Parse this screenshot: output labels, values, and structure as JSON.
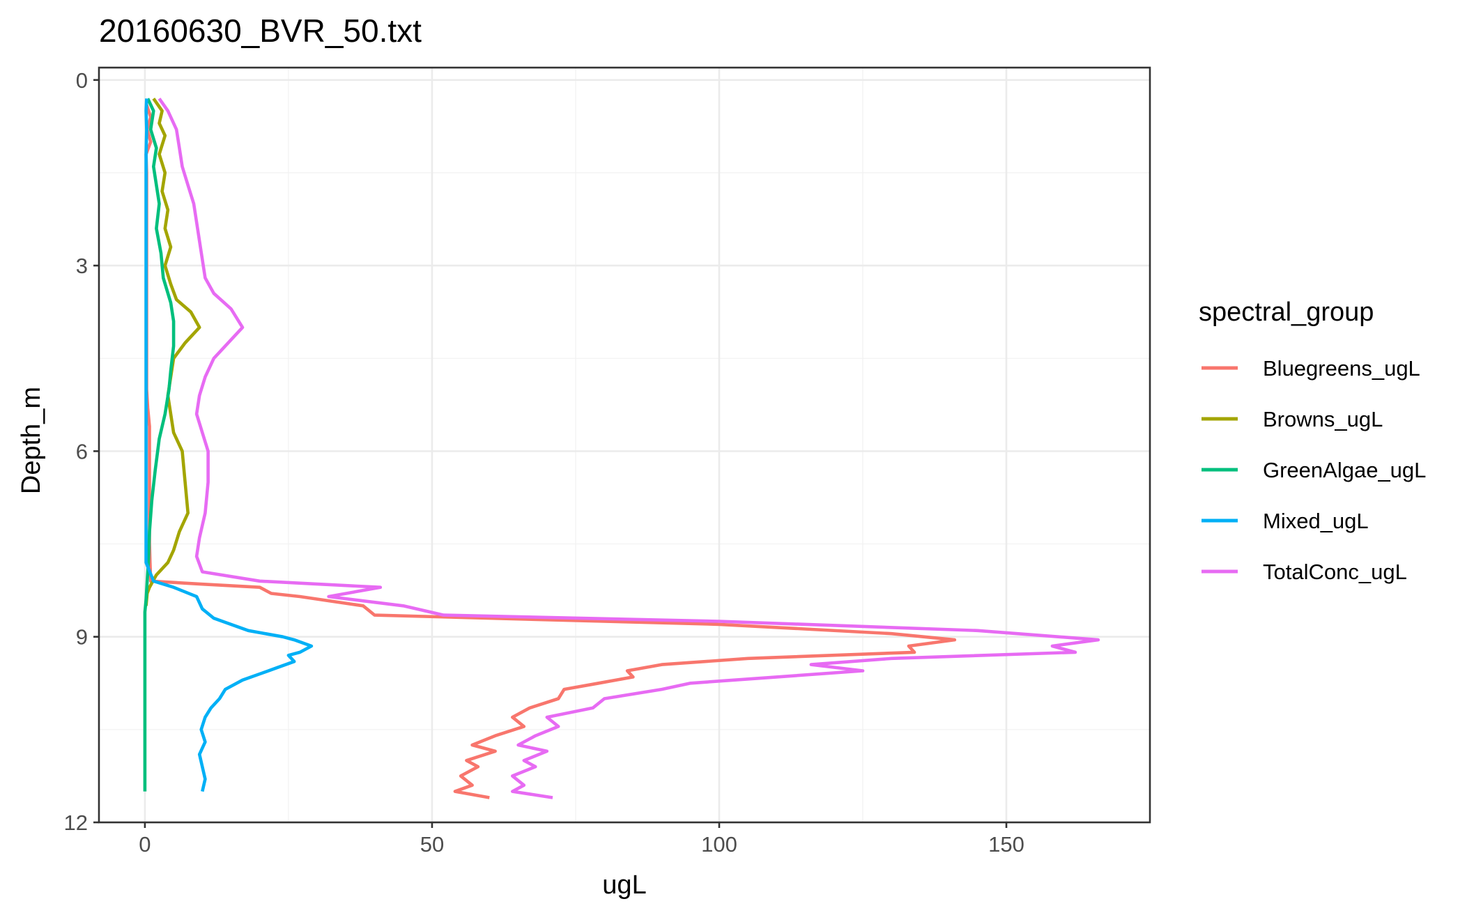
{
  "chart_data": {
    "type": "line",
    "title": "20160630_BVR_50.txt",
    "xlabel": "ugL",
    "ylabel": "Depth_m",
    "xlim": [
      -8,
      175
    ],
    "ylim": [
      12,
      -0.2
    ],
    "y_reversed": true,
    "x_ticks": [
      0,
      50,
      100,
      150
    ],
    "y_ticks": [
      0,
      3,
      6,
      9,
      12
    ],
    "grid": true,
    "legend": {
      "title": "spectral_group",
      "position": "right"
    },
    "series": [
      {
        "name": "Bluegreens_ugL",
        "color": "#F8766D",
        "points": [
          [
            0.3,
            0.4
          ],
          [
            1.0,
            0.6
          ],
          [
            0.4,
            0.8
          ],
          [
            1.0,
            1.0
          ],
          [
            0.2,
            1.2
          ],
          [
            0.3,
            1.5
          ],
          [
            0.3,
            2.0
          ],
          [
            0.3,
            2.5
          ],
          [
            0.3,
            3.0
          ],
          [
            0.3,
            3.5
          ],
          [
            0.3,
            4.0
          ],
          [
            0.3,
            4.5
          ],
          [
            0.3,
            5.0
          ],
          [
            0.5,
            5.3
          ],
          [
            0.8,
            5.6
          ],
          [
            0.8,
            6.0
          ],
          [
            0.8,
            6.5
          ],
          [
            0.8,
            7.0
          ],
          [
            0.8,
            7.5
          ],
          [
            0.9,
            7.8
          ],
          [
            1.0,
            8.1
          ],
          [
            10,
            8.15
          ],
          [
            20,
            8.2
          ],
          [
            22,
            8.3
          ],
          [
            27,
            8.35
          ],
          [
            38,
            8.5
          ],
          [
            40,
            8.65
          ],
          [
            100,
            8.8
          ],
          [
            130,
            8.95
          ],
          [
            141,
            9.05
          ],
          [
            133,
            9.15
          ],
          [
            134,
            9.25
          ],
          [
            105,
            9.35
          ],
          [
            90,
            9.45
          ],
          [
            84,
            9.55
          ],
          [
            85,
            9.65
          ],
          [
            79,
            9.75
          ],
          [
            73,
            9.85
          ],
          [
            72,
            10.0
          ],
          [
            67,
            10.15
          ],
          [
            64,
            10.3
          ],
          [
            66,
            10.45
          ],
          [
            61,
            10.6
          ],
          [
            57,
            10.75
          ],
          [
            61,
            10.85
          ],
          [
            56,
            11.0
          ],
          [
            58,
            11.1
          ],
          [
            55,
            11.25
          ],
          [
            57,
            11.4
          ],
          [
            54,
            11.5
          ],
          [
            60,
            11.6
          ]
        ]
      },
      {
        "name": "Browns_ugL",
        "color": "#A3A500",
        "points": [
          [
            1.5,
            0.3
          ],
          [
            3.0,
            0.5
          ],
          [
            2.5,
            0.7
          ],
          [
            3.5,
            0.9
          ],
          [
            2.5,
            1.2
          ],
          [
            3.5,
            1.5
          ],
          [
            3.0,
            1.8
          ],
          [
            4.0,
            2.1
          ],
          [
            3.5,
            2.4
          ],
          [
            4.5,
            2.7
          ],
          [
            3.5,
            3.0
          ],
          [
            4.5,
            3.3
          ],
          [
            5.5,
            3.55
          ],
          [
            8.0,
            3.75
          ],
          [
            9.5,
            4.0
          ],
          [
            7.0,
            4.25
          ],
          [
            5.0,
            4.5
          ],
          [
            4.5,
            4.8
          ],
          [
            4.0,
            5.1
          ],
          [
            4.5,
            5.4
          ],
          [
            5.0,
            5.7
          ],
          [
            6.5,
            6.0
          ],
          [
            7.0,
            6.5
          ],
          [
            7.5,
            7.0
          ],
          [
            6.0,
            7.3
          ],
          [
            5.0,
            7.6
          ],
          [
            4.0,
            7.8
          ],
          [
            2.0,
            8.0
          ],
          [
            0.8,
            8.2
          ],
          [
            0.4,
            8.3
          ],
          [
            0.2,
            8.5
          ]
        ]
      },
      {
        "name": "GreenAlgae_ugL",
        "color": "#00BF7D",
        "points": [
          [
            0.5,
            0.3
          ],
          [
            1.5,
            0.5
          ],
          [
            1.0,
            0.8
          ],
          [
            2.0,
            1.1
          ],
          [
            1.5,
            1.4
          ],
          [
            2.0,
            1.7
          ],
          [
            2.5,
            2.0
          ],
          [
            2.0,
            2.4
          ],
          [
            2.8,
            2.8
          ],
          [
            3.2,
            3.2
          ],
          [
            4.5,
            3.6
          ],
          [
            5.0,
            3.9
          ],
          [
            5.0,
            4.3
          ],
          [
            4.5,
            4.7
          ],
          [
            4.2,
            5.0
          ],
          [
            3.5,
            5.4
          ],
          [
            2.5,
            5.8
          ],
          [
            1.8,
            6.3
          ],
          [
            1.2,
            6.8
          ],
          [
            0.8,
            7.3
          ],
          [
            0.6,
            7.8
          ],
          [
            0.4,
            8.1
          ],
          [
            0.2,
            8.4
          ],
          [
            0,
            8.6
          ],
          [
            0,
            9
          ],
          [
            0,
            9.5
          ],
          [
            0,
            10
          ],
          [
            0,
            10.5
          ],
          [
            0,
            11
          ],
          [
            0,
            11.5
          ]
        ]
      },
      {
        "name": "Mixed_ugL",
        "color": "#00B0F6",
        "points": [
          [
            0.3,
            0.3
          ],
          [
            0.2,
            0.5
          ],
          [
            0.3,
            0.8
          ],
          [
            0.2,
            1.2
          ],
          [
            0.2,
            1.6
          ],
          [
            0.2,
            2.0
          ],
          [
            0.2,
            3.0
          ],
          [
            0.2,
            4.0
          ],
          [
            0.2,
            5.0
          ],
          [
            0.2,
            6.0
          ],
          [
            0.2,
            7.0
          ],
          [
            0.2,
            7.8
          ],
          [
            1.5,
            8.1
          ],
          [
            5.0,
            8.2
          ],
          [
            9.0,
            8.35
          ],
          [
            10,
            8.55
          ],
          [
            12,
            8.7
          ],
          [
            18,
            8.9
          ],
          [
            24,
            9.0
          ],
          [
            26,
            9.05
          ],
          [
            29,
            9.15
          ],
          [
            27,
            9.25
          ],
          [
            25,
            9.3
          ],
          [
            26,
            9.4
          ],
          [
            23,
            9.5
          ],
          [
            20,
            9.6
          ],
          [
            17,
            9.7
          ],
          [
            14,
            9.85
          ],
          [
            13,
            10.0
          ],
          [
            11.5,
            10.15
          ],
          [
            10.5,
            10.3
          ],
          [
            9.8,
            10.5
          ],
          [
            10.5,
            10.7
          ],
          [
            9.5,
            10.9
          ],
          [
            10,
            11.1
          ],
          [
            10.5,
            11.3
          ],
          [
            10,
            11.5
          ]
        ]
      },
      {
        "name": "TotalConc_ugL",
        "color": "#E76BF3",
        "points": [
          [
            2.5,
            0.3
          ],
          [
            4.0,
            0.5
          ],
          [
            5.5,
            0.8
          ],
          [
            6.0,
            1.1
          ],
          [
            6.5,
            1.4
          ],
          [
            7.5,
            1.7
          ],
          [
            8.5,
            2.0
          ],
          [
            9.0,
            2.3
          ],
          [
            9.5,
            2.6
          ],
          [
            10,
            2.9
          ],
          [
            10.5,
            3.2
          ],
          [
            12,
            3.45
          ],
          [
            15,
            3.7
          ],
          [
            17,
            4.0
          ],
          [
            15,
            4.2
          ],
          [
            12,
            4.5
          ],
          [
            10.5,
            4.8
          ],
          [
            9.5,
            5.1
          ],
          [
            9,
            5.4
          ],
          [
            10,
            5.7
          ],
          [
            11,
            6.0
          ],
          [
            11,
            6.5
          ],
          [
            10.5,
            7.0
          ],
          [
            9.5,
            7.4
          ],
          [
            9,
            7.7
          ],
          [
            10,
            7.95
          ],
          [
            20,
            8.1
          ],
          [
            41,
            8.2
          ],
          [
            32,
            8.35
          ],
          [
            45,
            8.5
          ],
          [
            52,
            8.65
          ],
          [
            100,
            8.75
          ],
          [
            145,
            8.9
          ],
          [
            166,
            9.05
          ],
          [
            158,
            9.15
          ],
          [
            162,
            9.25
          ],
          [
            130,
            9.35
          ],
          [
            116,
            9.45
          ],
          [
            125,
            9.55
          ],
          [
            110,
            9.65
          ],
          [
            95,
            9.75
          ],
          [
            90,
            9.85
          ],
          [
            80,
            10.0
          ],
          [
            78,
            10.15
          ],
          [
            70,
            10.3
          ],
          [
            72,
            10.45
          ],
          [
            68,
            10.6
          ],
          [
            65,
            10.75
          ],
          [
            70,
            10.85
          ],
          [
            66,
            11.0
          ],
          [
            68,
            11.1
          ],
          [
            64,
            11.25
          ],
          [
            66,
            11.4
          ],
          [
            64,
            11.5
          ],
          [
            71,
            11.6
          ]
        ]
      }
    ]
  }
}
